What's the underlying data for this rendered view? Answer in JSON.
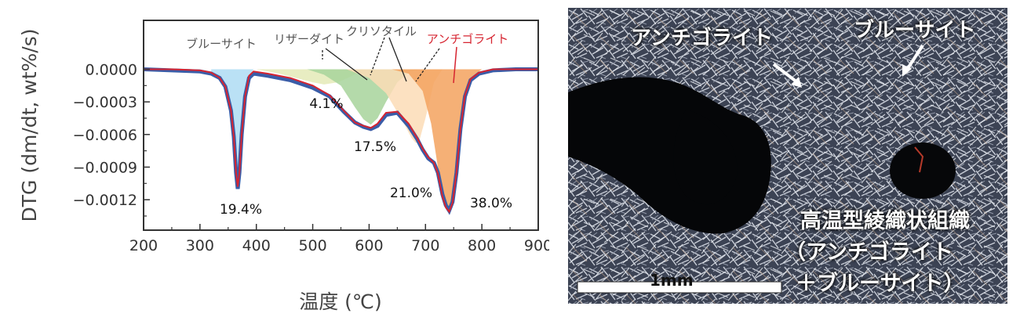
{
  "chart_data": {
    "type": "area",
    "xlabel": "温度 (℃)",
    "ylabel": "DTG (dm/dt, wt%/s)",
    "xlim": [
      200,
      900
    ],
    "ylim": [
      -0.00148,
      0.00045
    ],
    "x_ticks": [
      "200",
      "300",
      "400",
      "500",
      "600",
      "700",
      "800",
      "900"
    ],
    "y_ticks": [
      "0.0000",
      "−0.0003",
      "−0.0006",
      "−0.0009",
      "−0.0012"
    ],
    "grid": false,
    "series": [
      {
        "name": "ブルーサイト",
        "color": "#aedcf3",
        "peak_x": 367,
        "peak_y": -0.00108,
        "percent": "19.4%",
        "x": [
          320,
          335,
          345,
          355,
          360,
          364,
          367,
          370,
          374,
          380,
          387,
          395
        ],
        "y": [
          -3e-05,
          -8e-05,
          -0.00016,
          -0.00038,
          -0.00062,
          -0.00095,
          -0.00108,
          -0.00095,
          -0.0006,
          -0.00025,
          -6e-05,
          0
        ]
      },
      {
        "name": "リザーダイト",
        "color": "#e4eab7",
        "percent": "4.1%",
        "x": [
          400,
          440,
          470,
          500,
          520,
          545,
          570,
          590
        ],
        "y": [
          0,
          -4e-05,
          -8e-05,
          -0.00012,
          -0.00014,
          -0.00012,
          -6e-05,
          0
        ]
      },
      {
        "name": "クリソタイル",
        "color": "#a7d39b",
        "peak_x": 603,
        "peak_y": -0.00051,
        "percent": "17.5%",
        "x": [
          490,
          520,
          550,
          575,
          590,
          603,
          615,
          630,
          650,
          670,
          690
        ],
        "y": [
          0,
          -5e-05,
          -0.00015,
          -0.00035,
          -0.00046,
          -0.00051,
          -0.00045,
          -0.0003,
          -0.00012,
          -3e-05,
          0
        ]
      },
      {
        "name": "",
        "color": "#fcdcb6",
        "peak_x": 683,
        "peak_y": -0.00068,
        "percent": "21.0%",
        "x": [
          560,
          600,
          630,
          660,
          675,
          683,
          690,
          700,
          715,
          730
        ],
        "y": [
          0,
          -8e-05,
          -0.00022,
          -0.00048,
          -0.00063,
          -0.00068,
          -0.00064,
          -0.00045,
          -0.00012,
          0
        ]
      },
      {
        "name": "アンチゴライト",
        "color": "#f3a25e",
        "peak_x": 742,
        "peak_y": -0.0013,
        "percent": "38.0%",
        "x": [
          640,
          670,
          695,
          710,
          722,
          732,
          742,
          750,
          758,
          768,
          780,
          800
        ],
        "y": [
          0,
          -4e-05,
          -0.0002,
          -0.0005,
          -0.0009,
          -0.00122,
          -0.0013,
          -0.00118,
          -0.00085,
          -0.00035,
          -8e-05,
          0
        ]
      }
    ],
    "measured": {
      "color": "#3a5da8",
      "x": [
        200,
        250,
        300,
        320,
        335,
        345,
        355,
        360,
        364,
        367,
        370,
        374,
        380,
        387,
        395,
        420,
        460,
        500,
        530,
        555,
        575,
        590,
        603,
        615,
        630,
        650,
        670,
        685,
        695,
        705,
        715,
        722,
        730,
        736,
        742,
        748,
        755,
        762,
        770,
        780,
        795,
        820,
        860,
        900
      ],
      "y": [
        0,
        -1e-05,
        -2e-05,
        -4e-05,
        -8e-05,
        -0.00016,
        -0.00038,
        -0.00062,
        -0.00095,
        -0.0011,
        -0.00095,
        -0.0006,
        -0.00025,
        -8e-05,
        -4e-05,
        -6e-05,
        -0.0001,
        -0.00017,
        -0.00025,
        -0.00039,
        -0.00049,
        -0.00053,
        -0.00055,
        -0.00052,
        -0.00042,
        -0.0004,
        -0.00052,
        -0.00064,
        -0.00074,
        -0.00082,
        -0.00086,
        -0.00095,
        -0.00115,
        -0.00125,
        -0.0013,
        -0.00122,
        -0.00095,
        -0.00055,
        -0.00025,
        -0.0001,
        -4e-05,
        -1e-05,
        0,
        0
      ]
    },
    "fit": {
      "color": "#d62430",
      "x": [
        200,
        250,
        300,
        320,
        335,
        345,
        355,
        360,
        364,
        367,
        370,
        374,
        380,
        387,
        395,
        420,
        460,
        500,
        530,
        555,
        575,
        590,
        603,
        615,
        630,
        650,
        670,
        685,
        695,
        705,
        715,
        722,
        730,
        736,
        742,
        748,
        755,
        762,
        770,
        780,
        795,
        820,
        860,
        900
      ],
      "y": [
        0,
        0,
        -1e-05,
        -3e-05,
        -8e-05,
        -0.00016,
        -0.00038,
        -0.00062,
        -0.00095,
        -0.00108,
        -0.00095,
        -0.0006,
        -0.00025,
        -6e-05,
        -2e-05,
        -4e-05,
        -8e-05,
        -0.00015,
        -0.00024,
        -0.00038,
        -0.00049,
        -0.00052,
        -0.00054,
        -0.0005,
        -0.0004,
        -0.00039,
        -0.0005,
        -0.00063,
        -0.00073,
        -0.00081,
        -0.00086,
        -0.00096,
        -0.00117,
        -0.00127,
        -0.00131,
        -0.00123,
        -0.00095,
        -0.00055,
        -0.00024,
        -9e-05,
        -3e-05,
        0,
        0,
        0
      ]
    }
  },
  "labels": {
    "brucite": "ブルーサイト",
    "lizardite": "リザーダイト",
    "chrysotile": "クリソタイル",
    "antigorite": "アンチゴライト"
  },
  "colors": {
    "antigorite_label": "#d62430",
    "other_label": "#555555"
  },
  "micrograph": {
    "label_antigorite": "アンチゴライト",
    "label_brucite": "ブルーサイト",
    "caption_line1": "高温型綾織状組織",
    "caption_line2": "（アンチゴライト",
    "caption_line3": "＋ブルーサイト）",
    "scale_label": "1mm"
  }
}
